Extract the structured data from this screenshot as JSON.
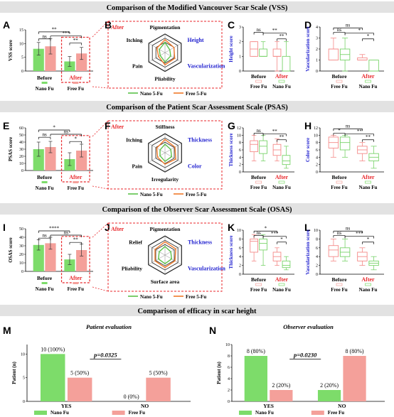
{
  "colors": {
    "nano": "#7ddc6a",
    "free": "#f4a09a",
    "nano_line": "#5cc14a",
    "free_line": "#f07a2a",
    "after_red": "#e8262a",
    "blue_text": "#1f1fcf",
    "banner": "#e2e2e2"
  },
  "section_titles": {
    "vss": "Comparison of  the Modified Vancouver Scar Scale (VSS)",
    "psas": "Comparison of  the Patient Scar Assessment Scale (PSAS)",
    "osas": "Comparison of  the Observer Scar Assessment Scale (OSAS)",
    "height": "Comparison of efficacy in scar height"
  },
  "panel_letters": [
    "A",
    "B",
    "C",
    "D",
    "E",
    "F",
    "G",
    "H",
    "I",
    "J",
    "K",
    "L",
    "M",
    "N"
  ],
  "common": {
    "before": "Before",
    "after": "After",
    "nano_fu": "Nano Fu",
    "free_fu": "Free Fu",
    "nano_5fu": "Nano 5-Fu",
    "free_5fu": "Free 5-Fu"
  },
  "sig_labels": {
    "ns": "ns",
    "s1": "*",
    "s2": "**",
    "s3": "***",
    "s4": "****"
  },
  "chart_data": [
    {
      "panel": "A",
      "type": "bar",
      "ylabel": "VSS score",
      "ylim": [
        0,
        15
      ],
      "yticks": [
        0,
        5,
        10,
        15
      ],
      "categories": [
        "Before",
        "After"
      ],
      "series": [
        {
          "name": "Nano Fu",
          "values": [
            8.1,
            3.5
          ],
          "err": [
            2.3,
            1.8
          ]
        },
        {
          "name": "Free Fu",
          "values": [
            9.0,
            6.4
          ],
          "err": [
            2.8,
            2.2
          ]
        }
      ],
      "significance": [
        "ns",
        "**",
        "***",
        "**"
      ]
    },
    {
      "panel": "B",
      "type": "radar",
      "axes": [
        "Pigmentation",
        "Height",
        "Vascularization",
        "Pliability",
        "Pain",
        "Itching"
      ],
      "series": [
        {
          "name": "Nano 5-Fu",
          "values": [
            0.55,
            0.3,
            0.35,
            0.5,
            0.3,
            0.35
          ]
        },
        {
          "name": "Free 5-Fu",
          "values": [
            0.7,
            0.55,
            0.6,
            0.65,
            0.4,
            0.5
          ]
        }
      ]
    },
    {
      "panel": "C",
      "type": "box",
      "ylabel": "Height score",
      "ylim": [
        0,
        3
      ],
      "yticks": [
        0,
        1,
        2,
        3
      ],
      "categories": [
        "Before",
        "After"
      ],
      "series": [
        {
          "name": "Nano Fu",
          "boxes": [
            [
              1,
              1,
              1,
              1.5,
              2
            ],
            [
              0,
              0,
              0,
              1,
              2
            ]
          ]
        },
        {
          "name": "Free Fu",
          "boxes": [
            [
              1,
              1,
              1.5,
              2,
              2
            ],
            [
              0,
              1,
              1,
              1.5,
              2
            ]
          ]
        }
      ],
      "significance": [
        "ns",
        "**",
        "**"
      ]
    },
    {
      "panel": "D",
      "type": "box",
      "ylabel": "Vascularization score",
      "ylim": [
        0,
        4
      ],
      "yticks": [
        0,
        1,
        2,
        3,
        4
      ],
      "categories": [
        "Before",
        "After"
      ],
      "series": [
        {
          "name": "Nano Fu",
          "boxes": [
            [
              0,
              1,
              1.5,
              2,
              3
            ],
            [
              0,
              0,
              0,
              1,
              1
            ]
          ]
        },
        {
          "name": "Free Fu",
          "boxes": [
            [
              1,
              1,
              2,
              2,
              3
            ],
            [
              1,
              1,
              1,
              1.2,
              1.5
            ]
          ]
        }
      ],
      "significance": [
        "ns",
        "ns",
        "*",
        "*"
      ]
    },
    {
      "panel": "E",
      "type": "bar",
      "ylabel": "PSAS score",
      "ylim": [
        0,
        60
      ],
      "yticks": [
        0,
        10,
        20,
        30,
        40,
        50,
        60
      ],
      "categories": [
        "Before",
        "After"
      ],
      "series": [
        {
          "name": "Nano Fu",
          "values": [
            30,
            16
          ],
          "err": [
            10,
            9
          ]
        },
        {
          "name": "Free Fu",
          "values": [
            33,
            28
          ],
          "err": [
            8,
            9
          ]
        }
      ],
      "significance": [
        "ns",
        "*",
        "ns",
        "*"
      ]
    },
    {
      "panel": "F",
      "type": "radar",
      "axes": [
        "Stiffness",
        "Thickness",
        "Color",
        "Irregularity",
        "Pain",
        "Itching"
      ],
      "series": [
        {
          "name": "Nano 5-Fu",
          "values": [
            0.45,
            0.35,
            0.4,
            0.45,
            0.3,
            0.3
          ]
        },
        {
          "name": "Free 5-Fu",
          "values": [
            0.7,
            0.6,
            0.65,
            0.6,
            0.45,
            0.5
          ]
        }
      ]
    },
    {
      "panel": "G",
      "type": "box",
      "ylabel": "Thickness score",
      "ylim": [
        0,
        12
      ],
      "yticks": [
        0,
        2,
        4,
        6,
        8,
        10,
        12
      ],
      "categories": [
        "Before",
        "After"
      ],
      "series": [
        {
          "name": "Nano Fu",
          "boxes": [
            [
              3,
              5,
              7,
              8.5,
              10
            ],
            [
              1,
              2,
              3,
              4.5,
              7
            ]
          ]
        },
        {
          "name": "Free Fu",
          "boxes": [
            [
              3,
              5.5,
              7.5,
              8.5,
              10
            ],
            [
              3,
              4.5,
              6,
              7.5,
              9
            ]
          ]
        }
      ],
      "significance": [
        "ns",
        "**",
        "**"
      ]
    },
    {
      "panel": "H",
      "type": "box",
      "ylabel": "Color score",
      "ylim": [
        0,
        12
      ],
      "yticks": [
        0,
        2,
        4,
        6,
        8,
        10,
        12
      ],
      "categories": [
        "Before",
        "After"
      ],
      "series": [
        {
          "name": "Nano Fu",
          "boxes": [
            [
              4,
              6,
              8,
              9.5,
              10
            ],
            [
              1,
              3,
              4,
              5,
              7
            ]
          ]
        },
        {
          "name": "Free Fu",
          "boxes": [
            [
              4,
              6.5,
              8,
              9.5,
              10
            ],
            [
              3,
              5,
              6,
              7,
              8
            ]
          ]
        }
      ],
      "significance": [
        "*",
        "ns",
        "**",
        "**"
      ]
    },
    {
      "panel": "I",
      "type": "bar",
      "ylabel": "OSAS score",
      "ylim": [
        0,
        50
      ],
      "yticks": [
        0,
        10,
        20,
        30,
        40,
        50
      ],
      "categories": [
        "Before",
        "After"
      ],
      "series": [
        {
          "name": "Nano Fu",
          "values": [
            31,
            14
          ],
          "err": [
            6,
            6
          ]
        },
        {
          "name": "Free Fu",
          "values": [
            33,
            25
          ],
          "err": [
            7,
            7
          ]
        }
      ],
      "significance": [
        "ns",
        "****",
        "ns",
        "**"
      ]
    },
    {
      "panel": "J",
      "type": "radar",
      "axes": [
        "Pigmentation",
        "Thickness",
        "Vascularization",
        "Surface area",
        "Pliability",
        "Relief"
      ],
      "series": [
        {
          "name": "Nano 5-Fu",
          "values": [
            0.45,
            0.35,
            0.4,
            0.45,
            0.4,
            0.35
          ]
        },
        {
          "name": "Free 5-Fu",
          "values": [
            0.7,
            0.65,
            0.6,
            0.65,
            0.6,
            0.6
          ]
        }
      ]
    },
    {
      "panel": "K",
      "type": "box",
      "ylabel": "Thickness score",
      "ylim": [
        0,
        10
      ],
      "yticks": [
        0,
        2,
        4,
        6,
        8,
        10
      ],
      "categories": [
        "Before",
        "After"
      ],
      "series": [
        {
          "name": "Nano Fu",
          "boxes": [
            [
              2,
              5.5,
              7,
              8,
              9
            ],
            [
              1,
              1.5,
              2,
              3,
              4
            ]
          ]
        },
        {
          "name": "Free Fu",
          "boxes": [
            [
              3,
              5,
              7.5,
              8,
              9
            ],
            [
              2,
              3,
              4,
              5,
              6
            ]
          ]
        }
      ],
      "significance": [
        "ns",
        "*",
        "***",
        "*"
      ]
    },
    {
      "panel": "L",
      "type": "box",
      "ylabel": "Vascularization score",
      "ylim": [
        0,
        10
      ],
      "yticks": [
        0,
        2,
        4,
        6,
        8,
        10
      ],
      "categories": [
        "Before",
        "After"
      ],
      "series": [
        {
          "name": "Nano Fu",
          "boxes": [
            [
              3,
              4,
              5,
              6,
              8
            ],
            [
              1,
              2,
              2.5,
              3,
              4
            ]
          ]
        },
        {
          "name": "Free Fu",
          "boxes": [
            [
              3,
              4,
              5.5,
              6.5,
              8
            ],
            [
              2,
              3,
              4,
              5,
              6
            ]
          ]
        }
      ],
      "significance": [
        "ns",
        "ns",
        "***",
        "*"
      ]
    },
    {
      "panel": "M",
      "type": "bar",
      "title": "Patient evaluation",
      "ylabel": "Patient (n)",
      "ylim": [
        0,
        12
      ],
      "yticks": [
        0,
        5,
        10
      ],
      "categories": [
        "YES",
        "NO"
      ],
      "pvalue": "p=0.0325",
      "series": [
        {
          "name": "Nano Fu",
          "values": [
            10,
            0
          ],
          "labels": [
            "10 (100%)",
            "0 (0%)"
          ]
        },
        {
          "name": "Free Fu",
          "values": [
            5,
            5
          ],
          "labels": [
            "5 (50%)",
            "5 (50%)"
          ]
        }
      ]
    },
    {
      "panel": "N",
      "type": "bar",
      "title": "Observer evaluation",
      "ylabel": "Patient (n)",
      "ylim": [
        0,
        10
      ],
      "yticks": [
        0,
        2,
        4,
        6,
        8,
        10
      ],
      "categories": [
        "YES",
        "NO"
      ],
      "pvalue": "p=0.0230",
      "series": [
        {
          "name": "Nano Fu",
          "values": [
            8,
            2
          ],
          "labels": [
            "8 (80%)",
            "2 (20%)"
          ]
        },
        {
          "name": "Free Fu",
          "values": [
            2,
            8
          ],
          "labels": [
            "2 (20%)",
            "8 (80%)"
          ]
        }
      ]
    }
  ]
}
